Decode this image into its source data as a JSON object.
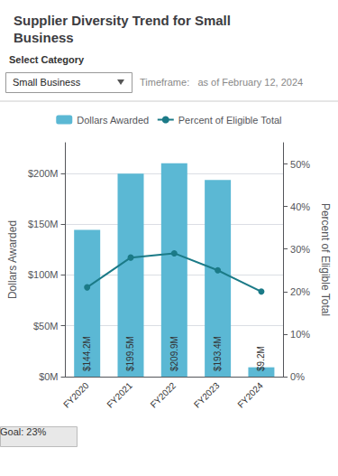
{
  "chart_data": {
    "type": "bar",
    "title": "Supplier Diversity Trend for Small Business",
    "annotations": [
      "Select Category",
      "Small Business",
      "Timeframe:   as of February 12, 2024",
      "Goal: 23%"
    ],
    "categories": [
      "FY2020",
      "FY2021",
      "FY2022",
      "FY2023",
      "FY2024"
    ],
    "ylabel": "Dollars Awarded",
    "y2label": "Percent of Eligible Total",
    "ylim": [
      0,
      230
    ],
    "yticks": [
      {
        "value": 0,
        "label": "$0M"
      },
      {
        "value": 50,
        "label": "$50M"
      },
      {
        "value": 100,
        "label": "$100M"
      },
      {
        "value": 150,
        "label": "$150M"
      },
      {
        "value": 200,
        "label": "$200M"
      }
    ],
    "y2lim": [
      0,
      55
    ],
    "y2ticks": [
      {
        "value": 0,
        "label": "0%"
      },
      {
        "value": 10,
        "label": "10%"
      },
      {
        "value": 20,
        "label": "20%"
      },
      {
        "value": 30,
        "label": "30%"
      },
      {
        "value": 40,
        "label": "40%"
      },
      {
        "value": 50,
        "label": "50%"
      }
    ],
    "grid": true,
    "legend": "top",
    "series": [
      {
        "name": "Dollars Awarded",
        "type": "bar",
        "color": "#5BB8D4",
        "values": [
          144.2,
          199.5,
          209.9,
          193.4,
          9.2
        ],
        "value_labels": [
          "$144.2M",
          "$199.5M",
          "$209.9M",
          "$193.4M",
          "$9.2M"
        ],
        "data_labels": true
      },
      {
        "name": "Percent of Eligible Total",
        "type": "line",
        "axis": "y2",
        "color": "#1B7A87",
        "marker": "circle",
        "values": [
          21,
          28,
          29,
          25,
          20
        ]
      }
    ]
  }
}
